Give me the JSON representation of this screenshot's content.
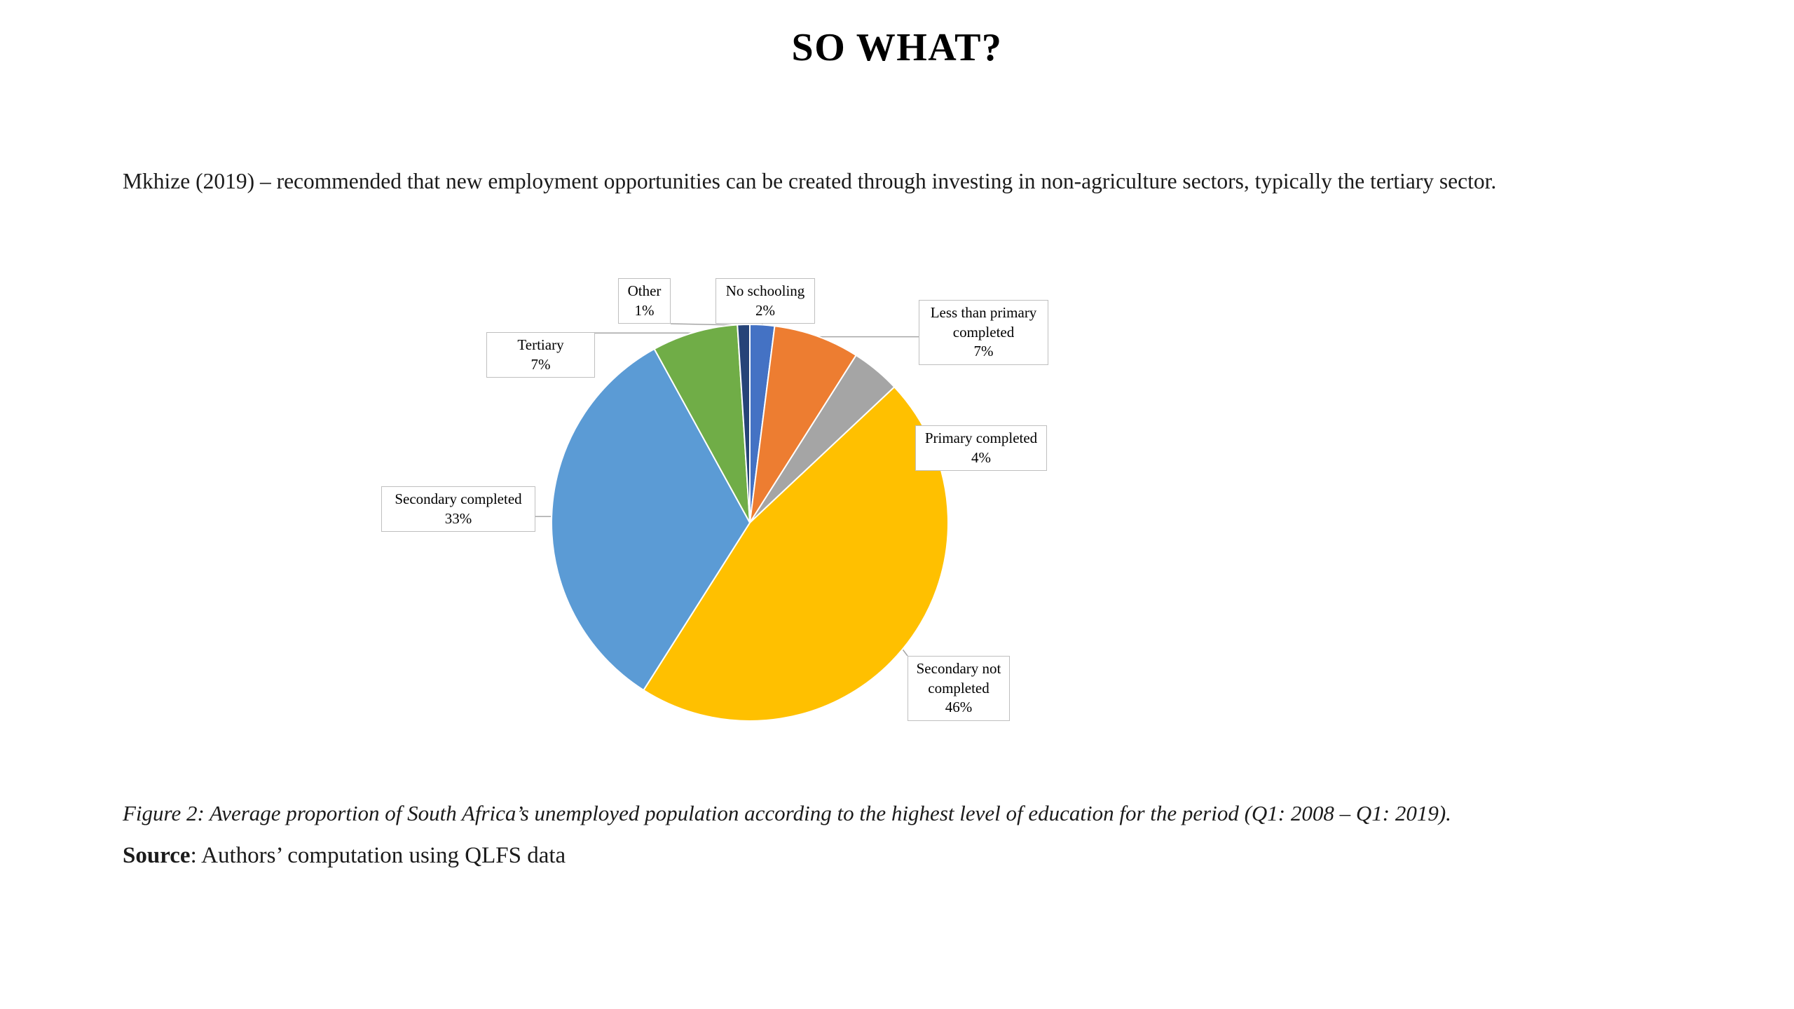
{
  "page": {
    "title": "SO WHAT?",
    "paragraph": "Mkhize (2019) – recommended that new employment opportunities can be created through investing in non-agriculture sectors, typically the tertiary sector.",
    "caption": "Figure 2: Average proportion of South Africa’s unemployed population according to the highest level of education for the period (Q1: 2008 – Q1: 2019).",
    "source_label": "Source",
    "source_text": ": Authors’ computation using QLFS data"
  },
  "chart_data": {
    "type": "pie",
    "title": "",
    "unit": "%",
    "legend": "none",
    "label_style": "callout boxes with leader lines",
    "categories": [
      "No schooling",
      "Less than primary completed",
      "Primary completed",
      "Secondary not completed",
      "Secondary completed",
      "Tertiary",
      "Other"
    ],
    "values": [
      2,
      7,
      4,
      46,
      33,
      7,
      1
    ],
    "colors": [
      "#4472C4",
      "#ED7D31",
      "#A5A5A5",
      "#FFC000",
      "#5B9BD5",
      "#70AD47",
      "#264478"
    ],
    "slices": [
      {
        "label": "No schooling",
        "value": 2,
        "pct": "2%",
        "color": "#4472C4"
      },
      {
        "label": "Less than primary completed",
        "value": 7,
        "pct": "7%",
        "color": "#ED7D31"
      },
      {
        "label": "Primary completed",
        "value": 4,
        "pct": "4%",
        "color": "#A5A5A5"
      },
      {
        "label": "Secondary not completed",
        "value": 46,
        "pct": "46%",
        "color": "#FFC000"
      },
      {
        "label": "Secondary completed",
        "value": 33,
        "pct": "33%",
        "color": "#5B9BD5"
      },
      {
        "label": "Tertiary",
        "value": 7,
        "pct": "7%",
        "color": "#70AD47"
      },
      {
        "label": "Other",
        "value": 1,
        "pct": "1%",
        "color": "#264478"
      }
    ]
  }
}
